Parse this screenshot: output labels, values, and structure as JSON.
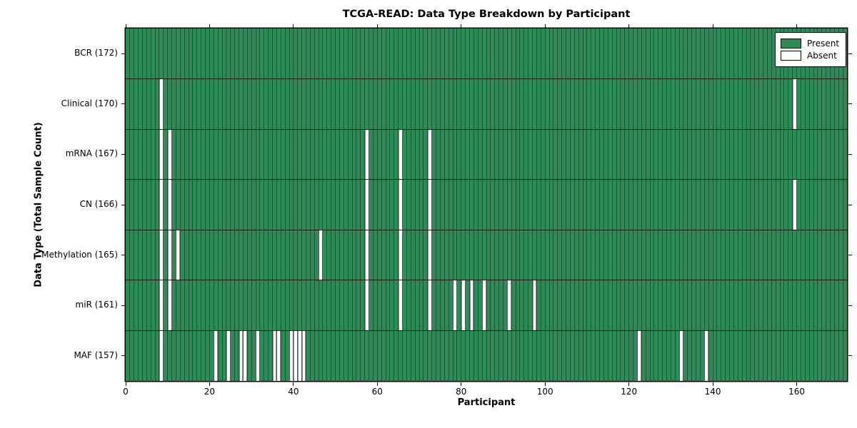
{
  "title": "TCGA-READ: Data Type Breakdown by Participant",
  "xlabel": "Participant",
  "ylabel": "Data Type (Total Sample Count)",
  "colors": {
    "present": "#2e8b57",
    "absent": "#ffffff",
    "axis": "#000000",
    "background": "#ffffff"
  },
  "legend": {
    "entries": [
      {
        "label": "Present",
        "color": "#2e8b57"
      },
      {
        "label": "Absent",
        "color": "#ffffff"
      }
    ]
  },
  "chart_data": {
    "type": "heatmap",
    "title": "TCGA-READ: Data Type Breakdown by Participant",
    "xlabel": "Participant",
    "ylabel": "Data Type (Total Sample Count)",
    "legend_position": "upper right",
    "grid": false,
    "n_participants": 172,
    "xlim": [
      0,
      172
    ],
    "x_ticks": [
      0,
      20,
      40,
      60,
      80,
      100,
      120,
      140,
      160
    ],
    "cell_states": {
      "present": 1,
      "absent": 0
    },
    "rows": [
      {
        "datatype": "BCR",
        "label": "BCR (172)",
        "total": 172,
        "absent_participants": []
      },
      {
        "datatype": "Clinical",
        "label": "Clinical (170)",
        "total": 170,
        "absent_participants": [
          8,
          159
        ]
      },
      {
        "datatype": "mRNA",
        "label": "mRNA (167)",
        "total": 167,
        "absent_participants": [
          8,
          10,
          57,
          65,
          72
        ]
      },
      {
        "datatype": "CN",
        "label": "CN (166)",
        "total": 166,
        "absent_participants": [
          8,
          10,
          57,
          65,
          72,
          159
        ]
      },
      {
        "datatype": "Methylation",
        "label": "Methylation (165)",
        "total": 165,
        "absent_participants": [
          8,
          10,
          12,
          46,
          57,
          65,
          72
        ]
      },
      {
        "datatype": "miR",
        "label": "miR (161)",
        "total": 161,
        "absent_participants": [
          8,
          10,
          57,
          65,
          72,
          78,
          80,
          82,
          85,
          91,
          97
        ]
      },
      {
        "datatype": "MAF",
        "label": "MAF (157)",
        "total": 157,
        "absent_participants": [
          8,
          21,
          24,
          27,
          28,
          31,
          35,
          36,
          39,
          40,
          41,
          42,
          122,
          132,
          138
        ]
      }
    ]
  }
}
